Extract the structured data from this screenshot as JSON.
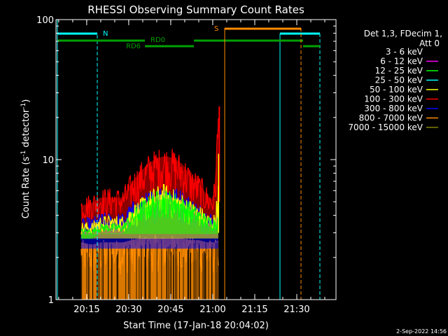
{
  "chart_data": {
    "type": "line",
    "title": "RHESSI Observing Summary Count Rates",
    "xlabel": "Start Time (17-Jan-18 20:04:02)",
    "ylabel_main": "Count Rate (s",
    "ylabel_sup1": "-1",
    "ylabel_mid": " detector",
    "ylabel_sup2": "-1",
    "ylabel_end": ")",
    "yscale": "log",
    "ylim": [
      1,
      100
    ],
    "xlim": [
      "20:04:02",
      "21:44:00"
    ],
    "xticks": [
      "20:15",
      "20:30",
      "20:45",
      "21:00",
      "21:15",
      "21:30"
    ],
    "yticks": [
      "1",
      "10",
      "100"
    ],
    "legend_header_1": "Det 1,3, FDecim 1,",
    "legend_header_2": "Att 0",
    "legend_position": "right",
    "series": [
      {
        "name": "3 - 6 keV",
        "color": "#000000"
      },
      {
        "name": "6 - 12 keV",
        "color": "#ff00ff"
      },
      {
        "name": "12 - 25 keV",
        "color": "#00ff00"
      },
      {
        "name": "25 - 50 keV",
        "color": "#00ffff"
      },
      {
        "name": "50 - 100 keV",
        "color": "#ffff00"
      },
      {
        "name": "100 - 300 keV",
        "color": "#ff0000"
      },
      {
        "name": "300 - 800 keV",
        "color": "#0000ff"
      },
      {
        "name": "800 - 7000 keV",
        "color": "#ff8c00"
      },
      {
        "name": "7000 - 15000 keV",
        "color": "#808000"
      }
    ],
    "flags": [
      {
        "label": "N",
        "color": "#00ffff"
      },
      {
        "label": "RD0",
        "color": "#00a000"
      },
      {
        "label": "RD6",
        "color": "#00a000"
      },
      {
        "label": "S",
        "color": "#ff8c00"
      }
    ],
    "envelope_times": [
      "20:13",
      "20:17",
      "20:20",
      "20:24",
      "20:28",
      "20:31",
      "20:34",
      "20:37",
      "20:40",
      "20:43",
      "20:46",
      "20:49",
      "20:52",
      "20:55",
      "20:58",
      "21:00",
      "21:01",
      "21:02"
    ],
    "series_levels": {
      "100 - 300 keV": [
        5.5,
        5.8,
        6.3,
        6.3,
        6.3,
        8.0,
        9.5,
        11,
        12,
        12.5,
        12,
        11,
        9,
        8,
        6.5,
        6,
        8,
        24
      ],
      "300 - 800 keV": [
        3.8,
        3.9,
        4.2,
        4.2,
        4.2,
        5.0,
        5.5,
        6.0,
        6.5,
        7.0,
        6.5,
        6.2,
        5.5,
        5.0,
        4.5,
        4.2,
        4.5,
        5
      ],
      "50 - 100 keV": [
        3.6,
        3.6,
        4.0,
        4.0,
        4.0,
        4.8,
        5.2,
        6.0,
        6.5,
        6.8,
        6.2,
        5.8,
        5.2,
        4.8,
        4.2,
        4.0,
        4.3,
        7
      ],
      "800 - 7000 keV": [
        2.7,
        2.6,
        2.7,
        2.7,
        2.7,
        2.8,
        2.9,
        2.9,
        2.9,
        2.9,
        2.9,
        2.9,
        2.8,
        2.8,
        2.7,
        2.7,
        2.7,
        2.8
      ],
      "12 - 25 keV": [
        3.2,
        3.2,
        3.5,
        3.5,
        3.5,
        4.2,
        5.0,
        5.5,
        6.0,
        6.2,
        6.0,
        5.5,
        5.0,
        4.5,
        4.0,
        3.8,
        4.0,
        4
      ]
    }
  },
  "footer_date": "2-Sep-2022 14:56"
}
